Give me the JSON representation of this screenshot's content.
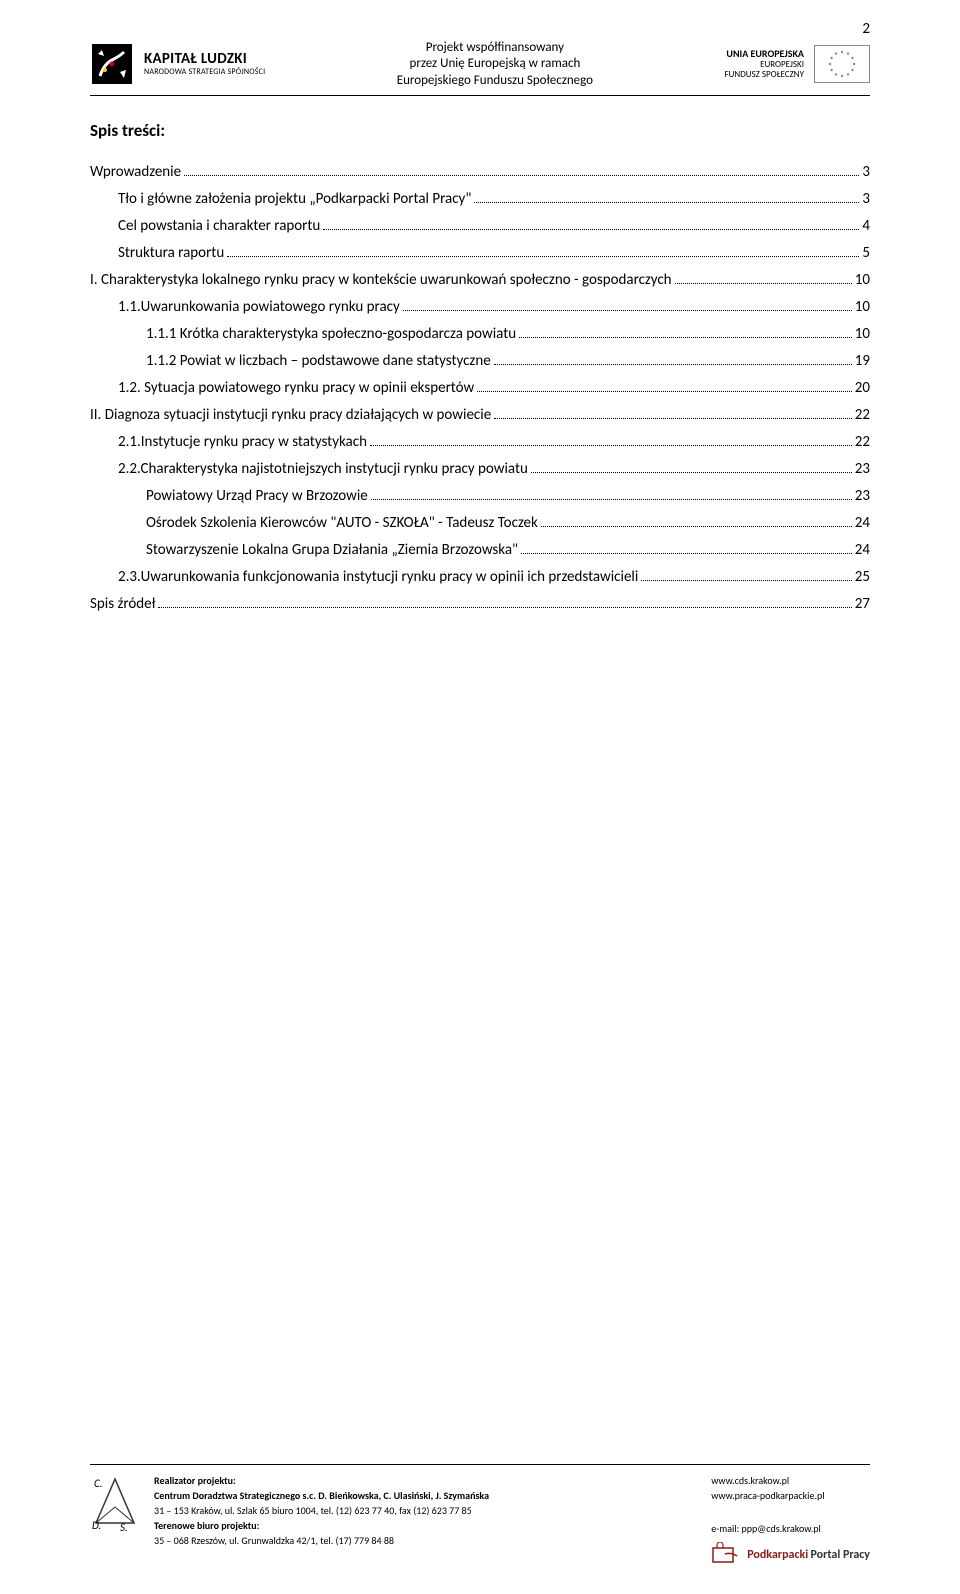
{
  "page_number": "2",
  "header": {
    "kl_main": "KAPITAŁ LUDZKI",
    "kl_sub": "NARODOWA STRATEGIA SPÓJNOŚCI",
    "center_line1": "Projekt współfinansowany",
    "center_line2": "przez Unię Europejską w ramach",
    "center_line3": "Europejskiego Funduszu Społecznego",
    "eu_line1": "UNIA EUROPEJSKA",
    "eu_line2": "EUROPEJSKI",
    "eu_line3": "FUNDUSZ SPOŁECZNY"
  },
  "toc_title": "Spis treści:",
  "toc": [
    {
      "indent": 0,
      "label": "Wprowadzenie",
      "page": "3"
    },
    {
      "indent": 1,
      "label": "Tło i główne założenia projektu „Podkarpacki Portal Pracy\"",
      "page": "3"
    },
    {
      "indent": 1,
      "label": "Cel powstania i charakter raportu",
      "page": "4"
    },
    {
      "indent": 1,
      "label": "Struktura raportu",
      "page": "5"
    },
    {
      "indent": 0,
      "label": "I. Charakterystyka lokalnego rynku pracy w kontekście uwarunkowań społeczno - gospodarczych",
      "page": "10"
    },
    {
      "indent": 1,
      "label": "1.1.Uwarunkowania powiatowego rynku pracy",
      "page": "10"
    },
    {
      "indent": 2,
      "label": "1.1.1 Krótka charakterystyka społeczno-gospodarcza powiatu",
      "page": "10"
    },
    {
      "indent": 2,
      "label": "1.1.2 Powiat w liczbach – podstawowe dane statystyczne",
      "page": "19"
    },
    {
      "indent": 1,
      "label": "1.2. Sytuacja powiatowego rynku pracy w opinii ekspertów",
      "page": "20"
    },
    {
      "indent": 0,
      "label": "II. Diagnoza sytuacji instytucji rynku pracy działających w powiecie",
      "page": "22"
    },
    {
      "indent": 1,
      "label": "2.1.Instytucje rynku pracy w statystykach",
      "page": "22"
    },
    {
      "indent": 1,
      "label": "2.2.Charakterystyka najistotniejszych instytucji rynku pracy powiatu",
      "page": "23"
    },
    {
      "indent": 2,
      "label": "Powiatowy Urząd Pracy w Brzozowie",
      "page": "23"
    },
    {
      "indent": 2,
      "label": "Ośrodek Szkolenia Kierowców \"AUTO - SZKOŁA\" - Tadeusz Toczek",
      "page": "24"
    },
    {
      "indent": 2,
      "label": "Stowarzyszenie Lokalna Grupa Działania „Ziemia Brzozowska\"",
      "page": "24"
    },
    {
      "indent": 1,
      "label": "2.3.Uwarunkowania funkcjonowania instytucji rynku pracy w opinii ich przedstawicieli",
      "page": "25"
    },
    {
      "indent": 0,
      "label": "Spis źródeł",
      "page": "27"
    }
  ],
  "footer": {
    "realizator_label": "Realizator projektu:",
    "realizator_name": "Centrum Doradztwa Strategicznego s.c. D. Bieńkowska, C. Ulasiński, J. Szymańska",
    "realizator_addr": "31 – 153 Kraków, ul. Szlak 65 biuro 1004, tel. (12) 623 77 40, fax (12) 623 77 85",
    "terenowe_label": "Terenowe biuro projektu:",
    "terenowe_addr": "35 – 068 Rzeszów, ul. Grunwaldzka 42/1, tel. (17) 779 84 88",
    "link1": "www.cds.krakow.pl",
    "link2": "www.praca-podkarpackie.pl",
    "email_label": "e-mail:",
    "email": "ppp@cds.krakow.pl",
    "ppp_line1": "Podkarpacki",
    "ppp_line2": "Portal Pracy"
  }
}
